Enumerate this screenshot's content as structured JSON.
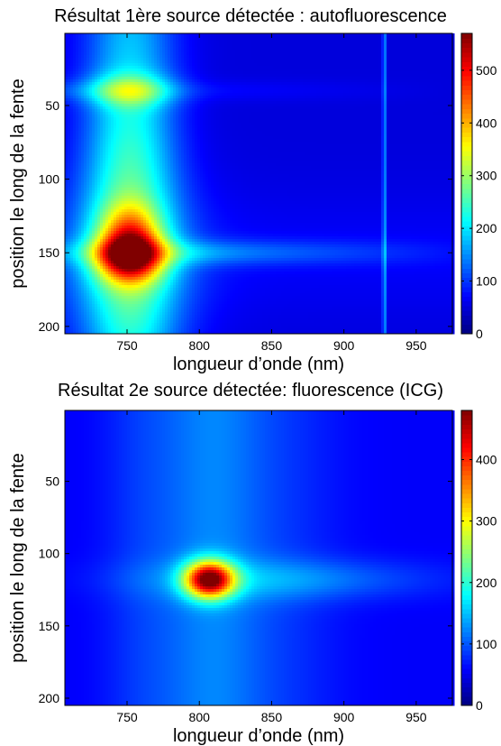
{
  "chart_data": [
    {
      "type": "heatmap",
      "title": "Résultat 1ère source détectée : autofluorescence",
      "xlabel": "longueur d’onde (nm)",
      "ylabel": "position le long de la fente",
      "xlim": [
        707,
        975
      ],
      "ylim": [
        205,
        1
      ],
      "xticks": [
        750,
        800,
        850,
        900,
        950
      ],
      "yticks": [
        50,
        100,
        150,
        200
      ],
      "colorbar": {
        "ticks": [
          0,
          100,
          200,
          300,
          400,
          500
        ],
        "max": 570,
        "colormap": "jet"
      },
      "features": [
        {
          "name": "main peak",
          "x": 752,
          "y": 152,
          "value": 560
        },
        {
          "name": "upper lobe",
          "x": 752,
          "y": 40,
          "value": 230
        },
        {
          "name": "vertical artifact",
          "x": 928,
          "value": 120
        }
      ]
    },
    {
      "type": "heatmap",
      "title": "Résultat 2e source détectée: fluorescence (ICG)",
      "xlabel": "longueur d’onde (nm)",
      "ylabel": "position le long de la fente",
      "xlim": [
        707,
        975
      ],
      "ylim": [
        205,
        1
      ],
      "xticks": [
        750,
        800,
        850,
        900,
        950
      ],
      "yticks": [
        50,
        100,
        150,
        200
      ],
      "colorbar": {
        "ticks": [
          0,
          100,
          200,
          300,
          400
        ],
        "max": 480,
        "colormap": "jet"
      },
      "features": [
        {
          "name": "main peak",
          "x": 807,
          "y": 118,
          "value": 470
        }
      ]
    }
  ]
}
